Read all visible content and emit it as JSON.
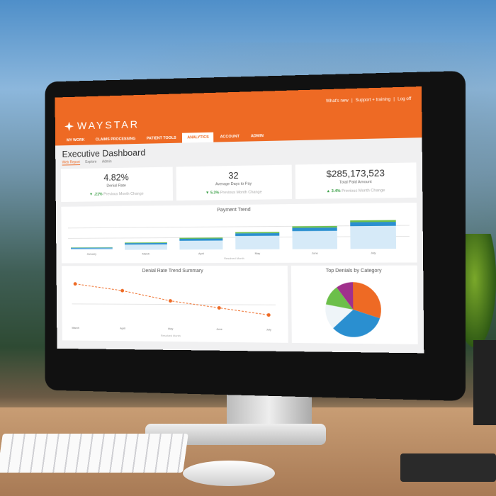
{
  "header": {
    "brand": "WAYSTAR",
    "util_links": [
      "What's new",
      "|",
      "Support + training",
      "|",
      "Log off"
    ],
    "tabs": [
      {
        "label": "MY WORK"
      },
      {
        "label": "CLAIMS PROCESSING"
      },
      {
        "label": "PATIENT TOOLS"
      },
      {
        "label": "ANALYTICS",
        "active": true
      },
      {
        "label": "ACCOUNT"
      },
      {
        "label": "ADMIN"
      }
    ]
  },
  "page": {
    "title": "Executive Dashboard",
    "subtabs": [
      "Web Report",
      "Explore",
      "Admin"
    ]
  },
  "kpis": [
    {
      "value": "4.82%",
      "label": "Denial Rate",
      "change": "▼ .21%",
      "change_label": "Previous Month Change"
    },
    {
      "value": "32",
      "label": "Average Days to Pay",
      "change": "▼ 5.3%",
      "change_label": "Previous Month Change"
    },
    {
      "value": "$285,173,523",
      "label": "Total Paid Amount",
      "change": "▲ 3.4%",
      "change_label": "Previous Month Change"
    }
  ],
  "colors": {
    "brand": "#ee6a24",
    "light": "#d6eaf8",
    "blue": "#2a8fd0",
    "green": "#6cbf4a",
    "purple": "#a0308c"
  },
  "chart_data": [
    {
      "type": "bar",
      "title": "Payment Trend",
      "xlabel": "Resolved Month",
      "categories": [
        "January",
        "March",
        "April",
        "May",
        "June",
        "July"
      ],
      "series": [
        {
          "values": [
            5,
            18,
            30,
            45,
            60,
            75
          ]
        },
        {
          "values": [
            3,
            5,
            7,
            9,
            11,
            13
          ]
        },
        {
          "values": [
            1,
            2,
            3,
            4,
            5,
            6
          ]
        }
      ]
    },
    {
      "type": "line",
      "title": "Denial Rate Trend Summary",
      "xlabel": "Resolved Month",
      "categories": [
        "March",
        "April",
        "May",
        "June",
        "July"
      ],
      "values": [
        5.3,
        5.1,
        4.8,
        4.6,
        4.4
      ]
    },
    {
      "type": "pie",
      "title": "Top Denials by Category",
      "values": [
        30,
        33,
        15,
        12,
        10
      ]
    }
  ]
}
